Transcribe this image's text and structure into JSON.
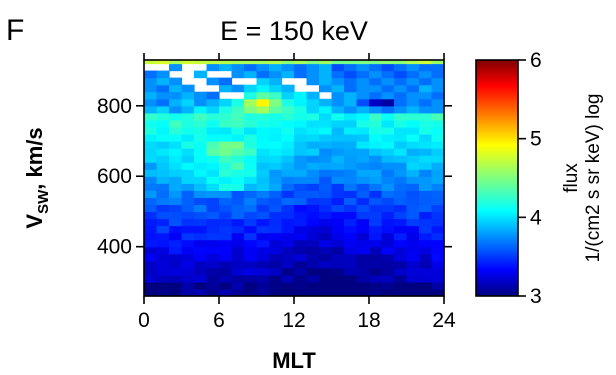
{
  "chart_data": {
    "type": "heatmap",
    "panel_label": "F",
    "title": "E = 150 keV",
    "xlabel": "MLT",
    "ylabel": {
      "main": "V",
      "sub": "SW",
      "suffix": ", km/s"
    },
    "xlim": [
      0,
      24
    ],
    "ylim": [
      260,
      930
    ],
    "x_ticks": [
      0,
      6,
      12,
      18,
      24
    ],
    "x_tick_labels": [
      "0",
      "6",
      "12",
      "18",
      "24"
    ],
    "y_ticks": [
      400,
      600,
      800
    ],
    "y_tick_labels": [
      "400",
      "600",
      "800"
    ],
    "x_bin_width_hours": 1,
    "y_bin_width_kms": 20,
    "colorbar": {
      "label_line1": "flux",
      "label_line2": "1/(cm2 s sr keV) log",
      "range": [
        3,
        6
      ],
      "ticks": [
        3,
        4,
        5,
        6
      ],
      "tick_labels": [
        "3",
        "4",
        "5",
        "6"
      ],
      "colormap": "jet"
    },
    "value_summary": {
      "description_of_grid": "log10 flux vs MLT (x) and solar wind speed (y)",
      "low_speed_band_300": 3.15,
      "mid_speed_band_500": 3.6,
      "high_speed_band_700": 4.1,
      "peak_value": 4.9,
      "peak_location": {
        "mlt": 9.5,
        "vsw": 820
      },
      "empty_region": "upper-left above ~800 km/s at dawn MLT has no data"
    },
    "grid_description_rows_from_top": [
      {
        "vsw": 920,
        "values": [
          null,
          null,
          3.8,
          null,
          null,
          3.8,
          3.9,
          3.8,
          3.7,
          3.8,
          3.9,
          3.8,
          3.7,
          3.8,
          3.9,
          3.6,
          3.7,
          3.8,
          3.7,
          3.6,
          3.7,
          3.8,
          3.7,
          3.7
        ]
      },
      {
        "vsw": 900,
        "values": [
          3.7,
          3.8,
          null,
          null,
          3.9,
          null,
          null,
          3.8,
          3.9,
          3.7,
          3.8,
          3.9,
          3.7,
          3.8,
          3.9,
          3.7,
          3.6,
          3.7,
          3.8,
          3.7,
          3.6,
          3.7,
          3.8,
          3.7
        ]
      },
      {
        "vsw": 880,
        "values": [
          3.8,
          3.9,
          3.8,
          null,
          null,
          3.8,
          3.7,
          null,
          null,
          4.0,
          3.9,
          null,
          null,
          3.8,
          3.9,
          3.8,
          3.7,
          3.8,
          3.7,
          3.8,
          3.7,
          3.8,
          3.7,
          3.8
        ]
      },
      {
        "vsw": 860,
        "values": [
          3.8,
          3.7,
          3.9,
          3.8,
          null,
          null,
          3.9,
          3.8,
          4.0,
          4.1,
          4.0,
          3.9,
          null,
          null,
          3.8,
          3.9,
          3.7,
          3.8,
          3.8,
          3.7,
          3.8,
          3.7,
          3.9,
          3.8
        ]
      },
      {
        "vsw": 840,
        "values": [
          3.9,
          3.8,
          3.8,
          3.9,
          3.8,
          3.7,
          null,
          null,
          4.2,
          4.4,
          4.3,
          4.0,
          4.1,
          3.9,
          null,
          3.8,
          3.9,
          3.8,
          3.7,
          3.8,
          3.7,
          3.8,
          3.8,
          3.7
        ]
      },
      {
        "vsw": 820,
        "values": [
          3.8,
          3.7,
          3.9,
          4.0,
          3.8,
          3.9,
          4.0,
          4.2,
          4.6,
          4.9,
          4.5,
          4.2,
          4.1,
          4.0,
          3.9,
          3.8,
          3.9,
          3.6,
          3.2,
          3.1,
          3.7,
          3.8,
          3.7,
          3.8
        ]
      },
      {
        "vsw": 800,
        "values": [
          3.9,
          4.0,
          3.8,
          3.9,
          4.1,
          4.0,
          4.2,
          4.3,
          4.5,
          4.6,
          4.4,
          4.3,
          4.2,
          4.0,
          4.1,
          3.9,
          3.8,
          3.9,
          3.8,
          3.7,
          3.8,
          3.9,
          3.8,
          3.8
        ]
      },
      {
        "vsw": 780,
        "values": [
          4.1,
          4.0,
          null,
          4.1,
          3.9,
          null,
          4.3,
          4.4,
          4.2,
          4.4,
          4.3,
          4.3,
          4.1,
          4.1,
          3.9,
          4.0,
          3.9,
          3.8,
          3.9,
          3.8,
          3.9,
          3.8,
          3.9,
          3.9
        ]
      }
    ]
  }
}
